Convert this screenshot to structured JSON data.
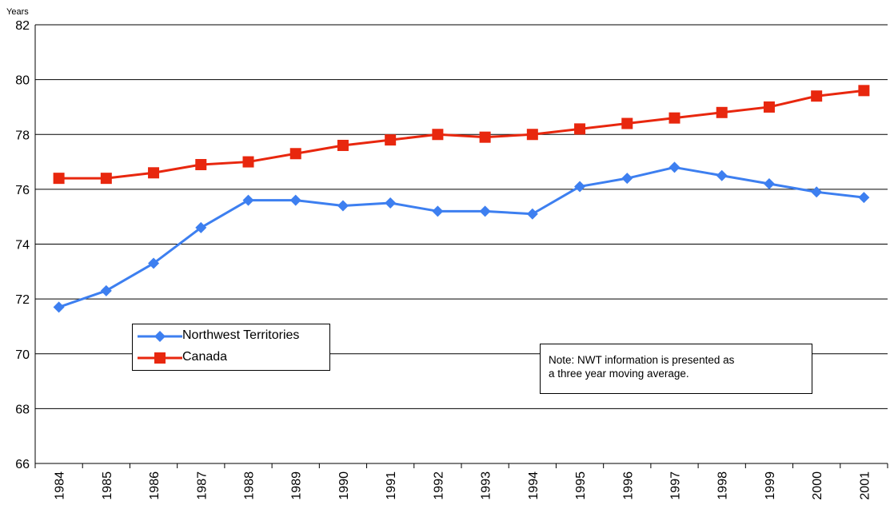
{
  "chart_data": {
    "type": "line",
    "ylabel": "Years",
    "xlabel": "",
    "ylim": [
      66,
      82
    ],
    "yticks": [
      66,
      68,
      70,
      72,
      74,
      76,
      78,
      80,
      82
    ],
    "grid": true,
    "legend_placement": "lower-left",
    "categories": [
      "1984",
      "1985",
      "1986",
      "1987",
      "1988",
      "1989",
      "1990",
      "1991",
      "1992",
      "1993",
      "1994",
      "1995",
      "1996",
      "1997",
      "1998",
      "1999",
      "2000",
      "2001"
    ],
    "series": [
      {
        "name": "Northwest Territories",
        "color": "#3d7ff0",
        "marker": "diamond",
        "values": [
          71.7,
          72.3,
          73.3,
          74.6,
          75.6,
          75.6,
          75.4,
          75.5,
          75.2,
          75.2,
          75.1,
          76.1,
          76.4,
          76.8,
          76.5,
          76.2,
          75.9,
          75.7
        ]
      },
      {
        "name": "Canada",
        "color": "#e8270e",
        "marker": "square",
        "values": [
          76.4,
          76.4,
          76.6,
          76.9,
          77.0,
          77.3,
          77.6,
          77.8,
          78.0,
          77.9,
          78.0,
          78.2,
          78.4,
          78.6,
          78.8,
          79.0,
          79.4,
          79.6
        ]
      }
    ],
    "annotation": "Note: NWT information is presented as a three year moving average.",
    "annotation_lines": [
      "Note: NWT information is presented as",
      "a three year moving average."
    ]
  }
}
